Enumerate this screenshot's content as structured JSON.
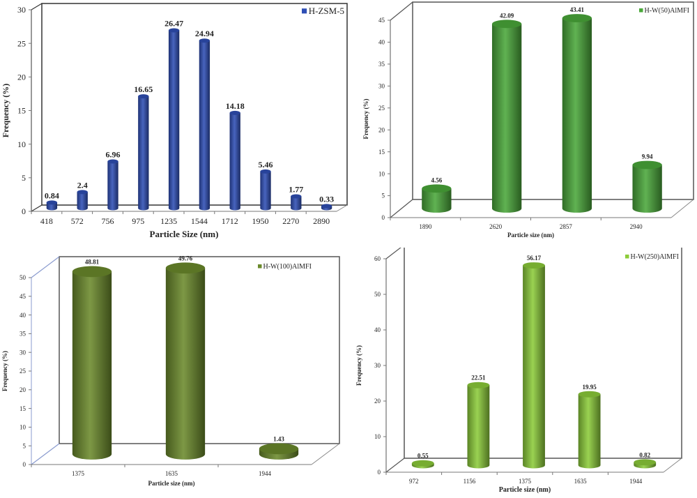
{
  "chart_data": [
    {
      "type": "bar",
      "style": "3d-cylinder",
      "title": "",
      "xlabel": "Particle Size (nm)",
      "ylabel": "Frequency (%)",
      "ylim": [
        0,
        30
      ],
      "yticks": [
        0,
        5,
        10,
        15,
        20,
        25,
        30
      ],
      "categories": [
        "418",
        "572",
        "756",
        "975",
        "1235",
        "1544",
        "1712",
        "1950",
        "2270",
        "2890"
      ],
      "series": [
        {
          "name": "H-ZSM-5",
          "color": "#2f4fb5",
          "values": [
            0.84,
            2.4,
            6.96,
            16.65,
            26.47,
            24.94,
            14.18,
            5.46,
            1.77,
            0.33
          ]
        }
      ],
      "data_labels": [
        "0.84",
        "2.4",
        "6.96",
        "16.65",
        "26.47",
        "24.94",
        "14.18",
        "5.46",
        "1.77",
        "0.33"
      ],
      "legend_position": "top-right",
      "grid": false
    },
    {
      "type": "bar",
      "style": "3d-cylinder",
      "title": "",
      "xlabel": "Particle size (nm)",
      "ylabel": "Frequency (%)",
      "ylim": [
        0,
        45
      ],
      "yticks": [
        0,
        5,
        10,
        15,
        20,
        25,
        30,
        35,
        40,
        45
      ],
      "categories": [
        "1890",
        "2620",
        "2857",
        "2940"
      ],
      "series": [
        {
          "name": "H-W(50)AlMFI",
          "color": "#4aa83a",
          "values": [
            4.56,
            42.09,
            43.41,
            9.94
          ]
        }
      ],
      "data_labels": [
        "4.56",
        "42.09",
        "43.41",
        "9.94"
      ],
      "legend_position": "top-right",
      "grid": false
    },
    {
      "type": "bar",
      "style": "3d-cylinder",
      "title": "",
      "xlabel": "Particle size (nm)",
      "ylabel": "Frequency (%)",
      "ylim": [
        0,
        50
      ],
      "yticks": [
        0,
        5,
        10,
        15,
        20,
        25,
        30,
        35,
        40,
        45,
        50
      ],
      "categories": [
        "1375",
        "1635",
        "1944"
      ],
      "series": [
        {
          "name": "H-W(100)AlMFI",
          "color": "#6b8a2c",
          "values": [
            48.81,
            49.76,
            1.43
          ]
        }
      ],
      "data_labels": [
        "48.81",
        "49.76",
        "1.43"
      ],
      "legend_position": "top-right",
      "grid": false
    },
    {
      "type": "bar",
      "style": "3d-cylinder",
      "title": "",
      "xlabel": "Particle size (nm)",
      "ylabel": "Frequency (%)",
      "ylim": [
        0,
        60
      ],
      "yticks": [
        0,
        10,
        20,
        30,
        40,
        50,
        60
      ],
      "categories": [
        "972",
        "1156",
        "1375",
        "1635",
        "1944"
      ],
      "series": [
        {
          "name": "H-W(250)AlMFI",
          "color": "#8ccc3a",
          "values": [
            0.55,
            22.51,
            56.17,
            19.95,
            0.82
          ]
        }
      ],
      "data_labels": [
        "0.55",
        "22.51",
        "56.17",
        "19.95",
        "0.82"
      ],
      "legend_position": "top-right",
      "grid": false
    }
  ]
}
